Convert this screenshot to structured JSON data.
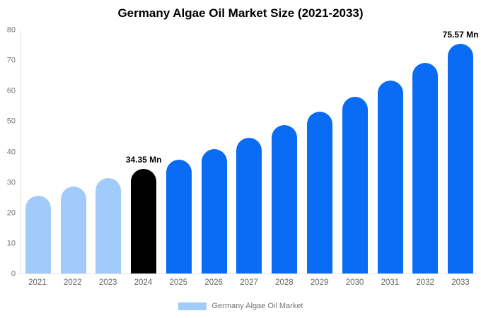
{
  "title": "Germany Algae Oil Market Size (2021-2033)",
  "legend": {
    "label": "Germany Algae Oil Market",
    "swatch_color": "#a1cbfa"
  },
  "colors": {
    "historical_bar": "#a1cbfa",
    "base_year_bar": "#000000",
    "forecast_bar": "#0a6cf4",
    "axis_line": "#e3e3e3",
    "y_tick_text": "#757575",
    "x_tick_text": "#666666",
    "data_label_text": "#000000"
  },
  "chart_data": {
    "type": "bar",
    "title": "Germany Algae Oil Market Size (2021-2033)",
    "xlabel": "",
    "ylabel": "",
    "unit": "Mn",
    "categories": [
      "2021",
      "2022",
      "2023",
      "2024",
      "2025",
      "2026",
      "2027",
      "2028",
      "2029",
      "2030",
      "2031",
      "2032",
      "2033"
    ],
    "values": [
      25.6,
      28.5,
      31.3,
      34.35,
      37.5,
      40.9,
      44.7,
      48.8,
      53.2,
      58.1,
      63.4,
      69.2,
      75.57
    ],
    "bar_colors": [
      "#a1cbfa",
      "#a1cbfa",
      "#a1cbfa",
      "#000000",
      "#0a6cf4",
      "#0a6cf4",
      "#0a6cf4",
      "#0a6cf4",
      "#0a6cf4",
      "#0a6cf4",
      "#0a6cf4",
      "#0a6cf4",
      "#0a6cf4"
    ],
    "data_labels": [
      "",
      "",
      "",
      "34.35 Mn",
      "",
      "",
      "",
      "",
      "",
      "",
      "",
      "",
      "75.57 Mn"
    ],
    "ylim": [
      0,
      80
    ],
    "yticks": [
      0,
      10,
      20,
      30,
      40,
      50,
      60,
      70,
      80
    ],
    "grid": false,
    "legend_position": "bottom",
    "legend_entries": [
      {
        "label": "Germany Algae Oil Market",
        "color": "#a1cbfa"
      }
    ]
  }
}
